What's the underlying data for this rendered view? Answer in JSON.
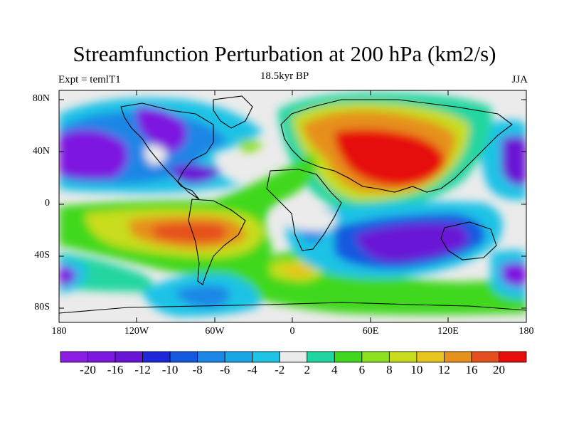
{
  "title": "Streamfunction Perturbation at 200 hPa (km2/s)",
  "left_string": "Expt = temlT1",
  "center_string": "18.5kyr BP",
  "right_string": "JJA",
  "map": {
    "projection": "cylindrical equidistant",
    "lon_range": [
      -180,
      180
    ],
    "lat_range": [
      -90,
      90
    ],
    "y_ticks": [
      "80N",
      "40N",
      "0",
      "40S",
      "80S"
    ],
    "x_ticks": [
      "180",
      "120W",
      "60W",
      "0",
      "60E",
      "120E",
      "180"
    ],
    "features": [
      {
        "name": "north-pacific-low",
        "lon": -160,
        "lat": 30,
        "value": -20
      },
      {
        "name": "north-america-low",
        "lon": -90,
        "lat": 45,
        "value": -18
      },
      {
        "name": "eurasia-high",
        "lon": 75,
        "lat": 35,
        "value": 22
      },
      {
        "name": "south-atlantic-high",
        "lon": -70,
        "lat": -20,
        "value": 18
      },
      {
        "name": "south-indian-low",
        "lon": 95,
        "lat": -30,
        "value": -20
      },
      {
        "name": "southeast-pacific-low",
        "lon": 165,
        "lat": -55,
        "value": -18
      },
      {
        "name": "antarctic-low",
        "lon": -60,
        "lat": -70,
        "value": -6
      }
    ]
  },
  "colorbar": {
    "labels": [
      "-20",
      "-16",
      "-12",
      "-10",
      "-8",
      "-6",
      "-4",
      "-2",
      "2",
      "4",
      "6",
      "8",
      "10",
      "12",
      "16",
      "20"
    ],
    "colors": [
      "#8c1ee3",
      "#7d18e0",
      "#6a15d6",
      "#1e28d8",
      "#1559e0",
      "#1e86e6",
      "#17a6e6",
      "#1ec3e6",
      "#ebebeb",
      "#20d6a0",
      "#40d81e",
      "#8ce01e",
      "#c8dc1e",
      "#e6c51e",
      "#e6901e",
      "#e6501e",
      "#e60d0d"
    ]
  }
}
